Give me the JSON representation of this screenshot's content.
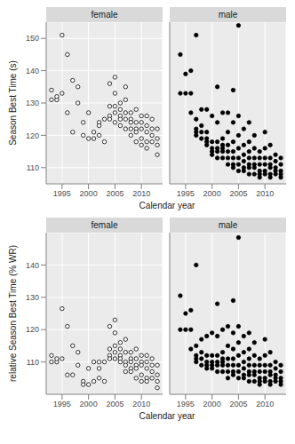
{
  "chart_data": [
    {
      "type": "scatter",
      "y_label": "Season Best Time (s)",
      "x_label": "Calendar year",
      "xlim": [
        1992,
        2014
      ],
      "xticks": [
        1995,
        2000,
        2005,
        2010
      ],
      "ylim": [
        105,
        155
      ],
      "yticks": [
        110,
        120,
        130,
        140,
        150
      ],
      "grid": true,
      "series": [
        {
          "name": "female",
          "color": "#000000",
          "marker": "open",
          "x": [
            1993,
            1993,
            1994,
            1994,
            1995,
            1995,
            1996,
            1996,
            1997,
            1997,
            1998,
            1998,
            1999,
            1999,
            2000,
            2000,
            2001,
            2001,
            2002,
            2002,
            2002,
            2003,
            2003,
            2004,
            2004,
            2004,
            2004,
            2005,
            2005,
            2005,
            2005,
            2005,
            2006,
            2006,
            2006,
            2006,
            2006,
            2007,
            2007,
            2007,
            2007,
            2007,
            2008,
            2008,
            2008,
            2008,
            2008,
            2009,
            2009,
            2009,
            2009,
            2009,
            2010,
            2010,
            2010,
            2010,
            2010,
            2011,
            2011,
            2011,
            2011,
            2011,
            2012,
            2012,
            2012,
            2012,
            2013,
            2013,
            2013,
            2013
          ],
          "values": [
            134,
            131,
            131,
            132,
            151,
            133,
            145,
            127,
            137,
            121,
            135,
            130,
            124,
            120,
            119,
            127,
            119,
            121,
            120,
            124,
            123,
            118,
            125,
            136,
            129,
            126,
            125,
            138,
            133,
            129,
            127,
            124,
            130,
            128,
            126,
            125,
            123,
            135,
            131,
            127,
            125,
            122,
            127,
            125,
            124,
            122,
            120,
            128,
            124,
            122,
            121,
            118,
            126,
            124,
            122,
            119,
            117,
            126,
            123,
            121,
            118,
            116,
            125,
            122,
            120,
            118,
            122,
            119,
            117,
            114
          ]
        },
        {
          "name": "male",
          "color": "#000000",
          "marker": "filled",
          "x": [
            1994,
            1994,
            1995,
            1995,
            1996,
            1996,
            1996,
            1997,
            1997,
            1997,
            1997,
            1997,
            1998,
            1998,
            1998,
            1998,
            1999,
            1999,
            1999,
            1999,
            1999,
            2000,
            2000,
            2000,
            2000,
            2000,
            2001,
            2001,
            2001,
            2001,
            2001,
            2001,
            2002,
            2002,
            2002,
            2002,
            2002,
            2002,
            2003,
            2003,
            2003,
            2003,
            2003,
            2003,
            2004,
            2004,
            2004,
            2004,
            2004,
            2004,
            2004,
            2005,
            2005,
            2005,
            2005,
            2005,
            2005,
            2005,
            2006,
            2006,
            2006,
            2006,
            2006,
            2006,
            2007,
            2007,
            2007,
            2007,
            2007,
            2007,
            2007,
            2008,
            2008,
            2008,
            2008,
            2008,
            2008,
            2009,
            2009,
            2009,
            2009,
            2009,
            2009,
            2010,
            2010,
            2010,
            2010,
            2010,
            2010,
            2011,
            2011,
            2011,
            2011,
            2011,
            2011,
            2012,
            2012,
            2012,
            2012,
            2012,
            2013,
            2013,
            2013,
            2013,
            2013
          ],
          "values": [
            145,
            133,
            139,
            133,
            140,
            133,
            127,
            151,
            125,
            122,
            121,
            120,
            128,
            123,
            121,
            119,
            128,
            121,
            119,
            118,
            117,
            126,
            118,
            116,
            115,
            114,
            135,
            124,
            118,
            116,
            115,
            113,
            127,
            119,
            117,
            116,
            115,
            113,
            127,
            121,
            117,
            115,
            113,
            111,
            134,
            124,
            118,
            115,
            113,
            111,
            110,
            154,
            126,
            120,
            116,
            113,
            111,
            109,
            122,
            117,
            114,
            112,
            110,
            109,
            124,
            118,
            115,
            113,
            111,
            110,
            108,
            120,
            116,
            113,
            111,
            110,
            108,
            115,
            113,
            111,
            109,
            108,
            107,
            121,
            116,
            113,
            111,
            109,
            108,
            117,
            113,
            111,
            110,
            108,
            107,
            114,
            112,
            110,
            109,
            108,
            113,
            111,
            109,
            108,
            107
          ]
        }
      ]
    },
    {
      "type": "scatter",
      "y_label": "relative Season Best Time (% WR)",
      "x_label": "Calendar year",
      "xlim": [
        1992,
        2014
      ],
      "xticks": [
        1995,
        2000,
        2005,
        2010
      ],
      "ylim": [
        100,
        150
      ],
      "yticks": [
        110,
        120,
        130,
        140
      ],
      "grid": true,
      "series": [
        {
          "name": "female",
          "color": "#000000",
          "marker": "open",
          "x": [
            1993,
            1993,
            1994,
            1994,
            1995,
            1995,
            1996,
            1996,
            1997,
            1997,
            1998,
            1998,
            1999,
            1999,
            2000,
            2000,
            2001,
            2001,
            2002,
            2002,
            2002,
            2003,
            2003,
            2004,
            2004,
            2004,
            2004,
            2005,
            2005,
            2005,
            2005,
            2005,
            2006,
            2006,
            2006,
            2006,
            2006,
            2007,
            2007,
            2007,
            2007,
            2007,
            2008,
            2008,
            2008,
            2008,
            2008,
            2009,
            2009,
            2009,
            2009,
            2009,
            2010,
            2010,
            2010,
            2010,
            2010,
            2011,
            2011,
            2011,
            2011,
            2011,
            2012,
            2012,
            2012,
            2012,
            2013,
            2013,
            2013,
            2013
          ],
          "values": [
            112,
            110,
            110,
            111,
            126.5,
            111,
            121,
            106,
            115,
            106,
            113,
            109,
            104,
            103,
            103,
            108,
            104,
            110,
            105,
            110,
            108,
            104,
            110,
            121,
            114,
            112,
            111,
            123,
            119,
            115,
            113,
            111,
            116,
            114,
            112,
            111,
            110,
            117,
            113,
            110,
            109,
            107,
            113,
            111,
            110,
            108,
            107,
            114,
            111,
            109,
            108,
            105,
            112,
            110,
            109,
            106,
            104,
            112,
            110,
            108,
            105,
            104,
            111,
            109,
            107,
            105,
            109,
            106,
            104,
            102
          ]
        },
        {
          "name": "male",
          "color": "#000000",
          "marker": "filled",
          "x": [
            1994,
            1994,
            1995,
            1995,
            1996,
            1996,
            1996,
            1997,
            1997,
            1997,
            1997,
            1997,
            1998,
            1998,
            1998,
            1998,
            1999,
            1999,
            1999,
            1999,
            1999,
            2000,
            2000,
            2000,
            2000,
            2000,
            2001,
            2001,
            2001,
            2001,
            2001,
            2001,
            2002,
            2002,
            2002,
            2002,
            2002,
            2002,
            2003,
            2003,
            2003,
            2003,
            2003,
            2003,
            2004,
            2004,
            2004,
            2004,
            2004,
            2004,
            2004,
            2005,
            2005,
            2005,
            2005,
            2005,
            2005,
            2005,
            2006,
            2006,
            2006,
            2006,
            2006,
            2006,
            2007,
            2007,
            2007,
            2007,
            2007,
            2007,
            2007,
            2008,
            2008,
            2008,
            2008,
            2008,
            2008,
            2009,
            2009,
            2009,
            2009,
            2009,
            2009,
            2010,
            2010,
            2010,
            2010,
            2010,
            2010,
            2011,
            2011,
            2011,
            2011,
            2011,
            2011,
            2012,
            2012,
            2012,
            2012,
            2012,
            2013,
            2013,
            2013,
            2013,
            2013
          ],
          "values": [
            130.5,
            120,
            125,
            120,
            126,
            120,
            114,
            140,
            115,
            112,
            111,
            110,
            117,
            113,
            111,
            109,
            118,
            112,
            110,
            109,
            108,
            119,
            112,
            110,
            109,
            108,
            128,
            118,
            112,
            110,
            109,
            107,
            120,
            113,
            111,
            110,
            109,
            107,
            121,
            115,
            111,
            109,
            107,
            105,
            129,
            119,
            114,
            111,
            109,
            107,
            106,
            148.5,
            121,
            116,
            112,
            109,
            107,
            105,
            118,
            113,
            110,
            108,
            106,
            105,
            119,
            114,
            111,
            109,
            107,
            106,
            104,
            116,
            112,
            109,
            107,
            106,
            104,
            111,
            109,
            107,
            105,
            104,
            103,
            117,
            112,
            109,
            107,
            105,
            104,
            113,
            109,
            107,
            106,
            104,
            103,
            110,
            108,
            106,
            105,
            104,
            109,
            107,
            105,
            104,
            103
          ]
        }
      ]
    }
  ]
}
